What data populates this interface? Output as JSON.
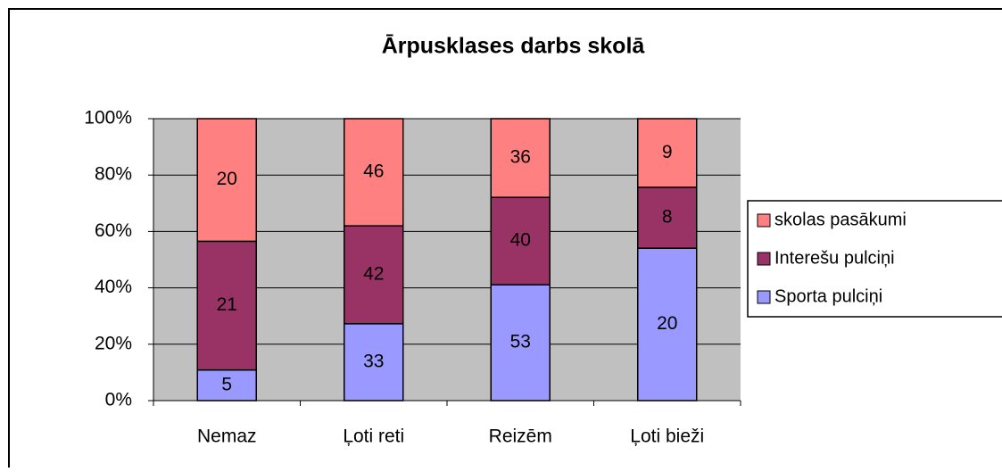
{
  "chart_data": {
    "type": "bar",
    "stacking": "percent",
    "title": "Ārpusklases darbs skolā",
    "categories": [
      "Nemaz",
      "Ļoti reti",
      "Reizēm",
      "Ļoti bieži"
    ],
    "series": [
      {
        "name": "Sporta pulciņi",
        "color": "#9999ff",
        "values": [
          5,
          33,
          53,
          20
        ]
      },
      {
        "name": "Interešu pulciņi",
        "color": "#993366",
        "values": [
          21,
          42,
          40,
          8
        ]
      },
      {
        "name": "skolas pasākumi",
        "color": "#ff8080",
        "values": [
          20,
          46,
          36,
          9
        ]
      }
    ],
    "ylim": [
      0,
      100
    ],
    "yticks": [
      {
        "value": 0,
        "label": "0%"
      },
      {
        "value": 20,
        "label": "20%"
      },
      {
        "value": 40,
        "label": "40%"
      },
      {
        "value": 60,
        "label": "60%"
      },
      {
        "value": 80,
        "label": "80%"
      },
      {
        "value": 100,
        "label": "100%"
      }
    ],
    "grid": true,
    "legend": "right"
  }
}
